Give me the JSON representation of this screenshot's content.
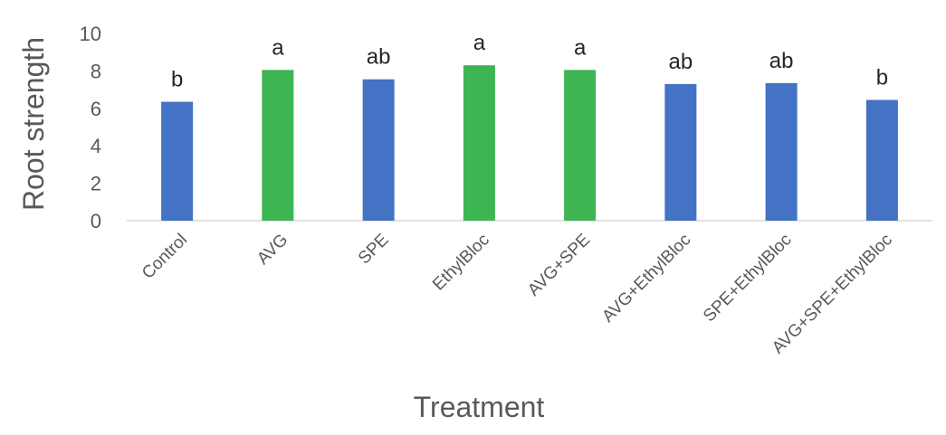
{
  "chart_data": {
    "type": "bar",
    "title": "",
    "xlabel": "Treatment",
    "ylabel": "Root strength",
    "ylim": [
      0,
      10
    ],
    "yticks": [
      0,
      2,
      4,
      6,
      8,
      10
    ],
    "grid": false,
    "legend": "none",
    "categories": [
      "Control",
      "AVG",
      "SPE",
      "EthylBloc",
      "AVG+SPE",
      "AVG+EthylBloc",
      "SPE+EthylBloc",
      "AVG+SPE+EthylBloc"
    ],
    "values": [
      6.35,
      8.05,
      7.55,
      8.3,
      8.05,
      7.3,
      7.35,
      6.45
    ],
    "annotations": [
      "b",
      "a",
      "ab",
      "a",
      "a",
      "ab",
      "ab",
      "b"
    ],
    "bar_colors": [
      "#4472C4",
      "#3CB552",
      "#4472C4",
      "#3CB552",
      "#3CB552",
      "#4472C4",
      "#4472C4",
      "#4472C4"
    ]
  }
}
